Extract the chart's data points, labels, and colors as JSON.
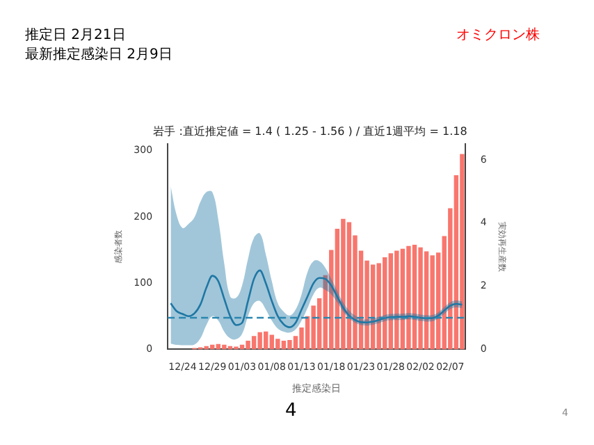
{
  "chart_data": {
    "type": "bar",
    "title": "岩手 :直近推定値 = 1.4 ( 1.25 - 1.56 ) / 直近1週平均 = 1.18",
    "xlabel": "推定感染日",
    "ylabel": "感染者数",
    "y2label": "実効再生産数",
    "annotations": [
      "推定日  2月21日",
      "最新推定感染日  2月9日",
      "オミクロン株",
      "4",
      "4"
    ],
    "categories": [
      null,
      null,
      "12/24",
      null,
      null,
      null,
      null,
      "12/29",
      null,
      null,
      null,
      null,
      "01/03",
      null,
      null,
      null,
      null,
      "01/08",
      null,
      null,
      null,
      null,
      "01/13",
      null,
      null,
      null,
      null,
      "01/18",
      null,
      null,
      null,
      null,
      "01/23",
      null,
      null,
      null,
      null,
      "01/28",
      null,
      null,
      null,
      null,
      "02/02",
      null,
      null,
      null,
      null,
      "02/07",
      null,
      null
    ],
    "series": [
      {
        "type": "bar",
        "color": "#f8766d",
        "values": [
          null,
          null,
          null,
          null,
          2,
          3,
          5,
          7,
          8,
          7,
          5,
          4,
          7,
          13,
          20,
          26,
          27,
          22,
          16,
          13,
          14,
          20,
          33,
          50,
          66,
          77,
          112,
          150,
          182,
          197,
          192,
          172,
          149,
          134,
          128,
          130,
          139,
          145,
          149,
          152,
          156,
          158,
          154,
          148,
          142,
          146,
          171,
          213,
          263,
          295
        ]
      },
      {
        "type": "line",
        "axis": "y2",
        "color": "#1f77a4",
        "values": [
          1.46,
          1.21,
          1.12,
          1.05,
          1.14,
          1.42,
          1.95,
          2.33,
          2.16,
          1.6,
          1.05,
          0.77,
          0.84,
          1.53,
          2.23,
          2.5,
          2.09,
          1.53,
          1.05,
          0.79,
          0.7,
          0.84,
          1.26,
          1.67,
          2.09,
          2.26,
          2.23,
          2.02,
          1.67,
          1.32,
          1.07,
          0.93,
          0.86,
          0.85,
          0.88,
          0.93,
          0.99,
          1.02,
          1.03,
          1.03,
          1.05,
          1.03,
          1.0,
          0.98,
          0.99,
          1.07,
          1.23,
          1.38,
          1.44,
          1.41
        ],
        "lower": [
          0.18,
          0.14,
          0.13,
          0.13,
          0.15,
          0.35,
          0.77,
          1.05,
          0.91,
          0.56,
          0.35,
          0.32,
          0.49,
          1.05,
          1.46,
          1.53,
          1.26,
          0.91,
          0.66,
          0.56,
          0.53,
          0.63,
          0.91,
          1.3,
          1.74,
          1.95,
          1.88,
          1.74,
          1.49,
          1.19,
          0.98,
          0.84,
          0.77,
          0.75,
          0.78,
          0.83,
          0.89,
          0.92,
          0.93,
          0.93,
          0.95,
          0.93,
          0.9,
          0.88,
          0.89,
          0.97,
          1.12,
          1.27,
          1.33,
          1.3
        ],
        "upper": [
          5.16,
          4.25,
          3.84,
          3.97,
          4.18,
          4.67,
          4.98,
          4.98,
          4.11,
          2.72,
          1.67,
          1.63,
          2.02,
          2.86,
          3.53,
          3.67,
          3.0,
          2.16,
          1.46,
          1.19,
          1.07,
          1.26,
          1.74,
          2.44,
          2.79,
          2.79,
          2.58,
          2.23,
          1.85,
          1.49,
          1.23,
          1.07,
          0.96,
          0.95,
          0.98,
          1.03,
          1.09,
          1.12,
          1.13,
          1.13,
          1.15,
          1.13,
          1.1,
          1.08,
          1.09,
          1.17,
          1.34,
          1.49,
          1.55,
          1.52
        ]
      }
    ],
    "ref_lines": [
      {
        "axis": "y2",
        "value": 1,
        "line_style": "dashed",
        "color": "#2a86b0"
      }
    ],
    "ylim": [
      0,
      310
    ],
    "yticks": [
      0,
      100,
      200,
      300
    ],
    "y2lim": [
      0,
      6.5
    ],
    "y2ticks": [
      0,
      2,
      4,
      6
    ],
    "grid": false,
    "legend": false,
    "marker": "none"
  }
}
